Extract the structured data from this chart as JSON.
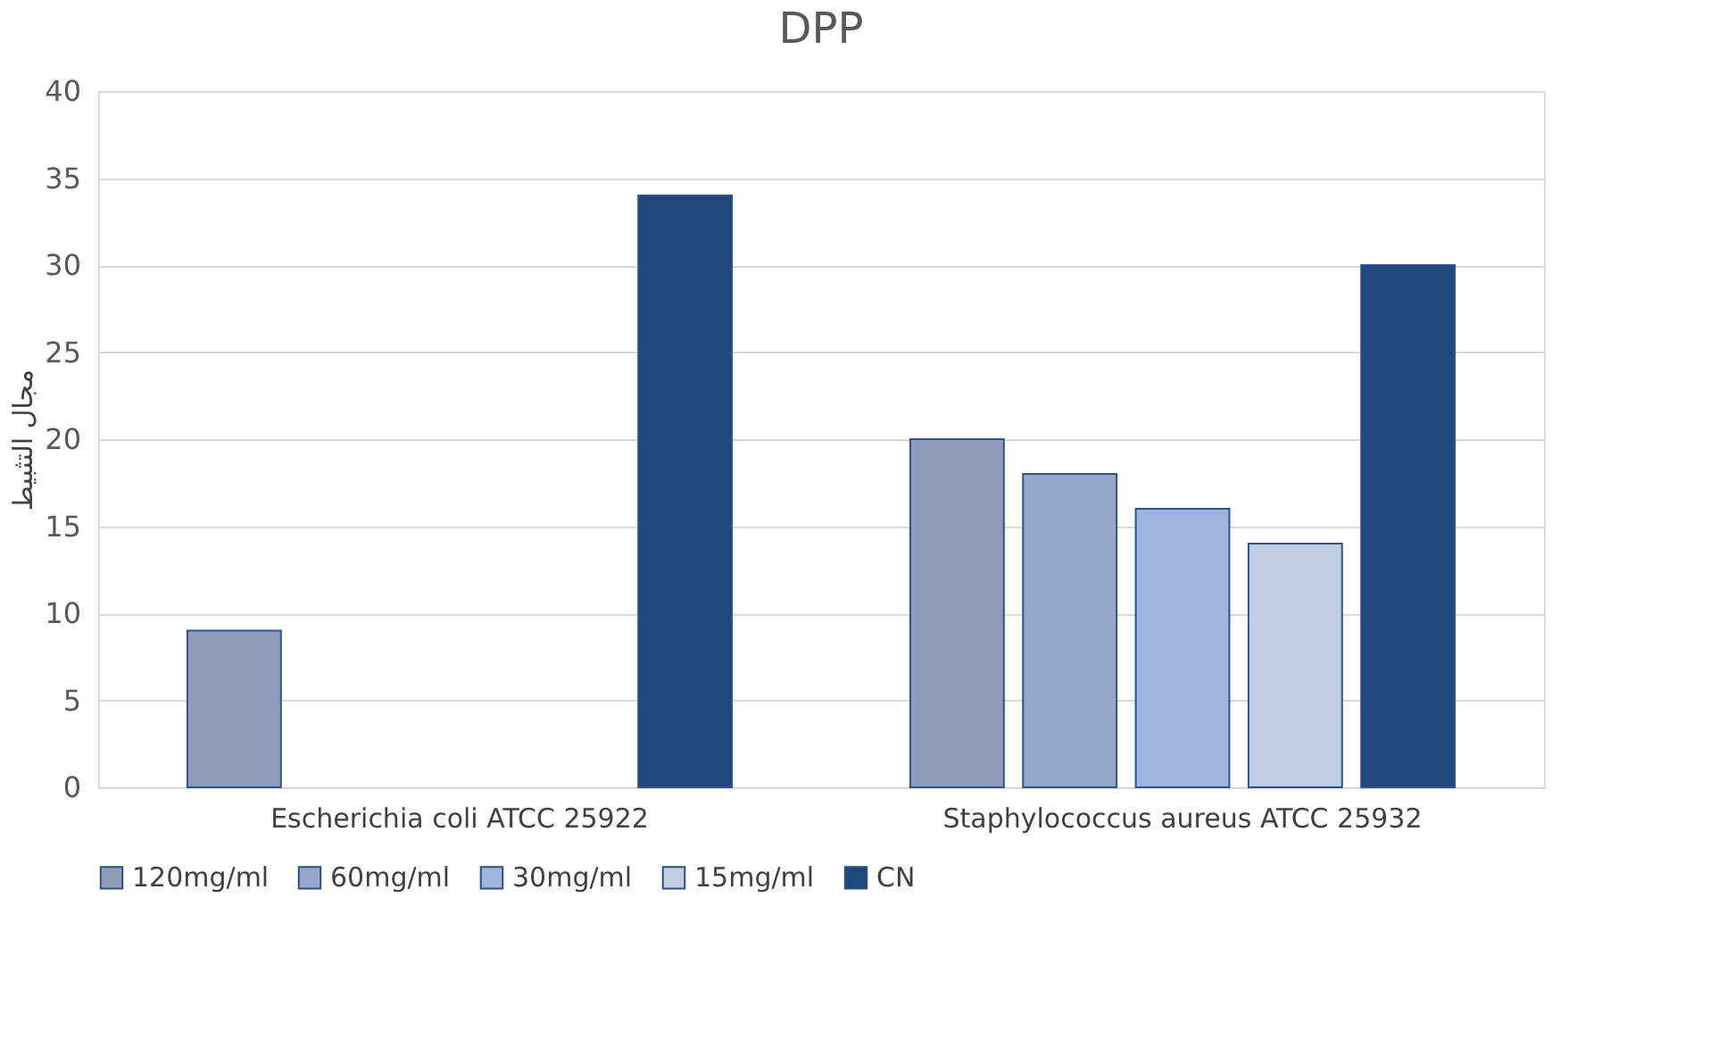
{
  "chart_data": {
    "type": "bar",
    "title": "DPP",
    "ylabel": "مجال التثبيط",
    "categories": [
      "Escherichia coli ATCC 25922",
      "Staphylococcus aureus ATCC 25932"
    ],
    "series": [
      {
        "name": "120mg/ml",
        "color": "#8e9cba",
        "values": [
          9,
          20
        ]
      },
      {
        "name": "60mg/ml",
        "color": "#96a9cd",
        "values": [
          null,
          18
        ]
      },
      {
        "name": "30mg/ml",
        "color": "#9eb6dc",
        "values": [
          null,
          16
        ]
      },
      {
        "name": "15mg/ml",
        "color": "#c1cde3",
        "values": [
          null,
          14
        ]
      },
      {
        "name": "CN",
        "color": "#1f497d",
        "values": [
          34,
          30
        ]
      }
    ],
    "ylim": [
      0,
      40
    ],
    "yticks": [
      0,
      5,
      10,
      15,
      20,
      25,
      30,
      35,
      40
    ],
    "grid": "y",
    "legend": "bottom"
  }
}
